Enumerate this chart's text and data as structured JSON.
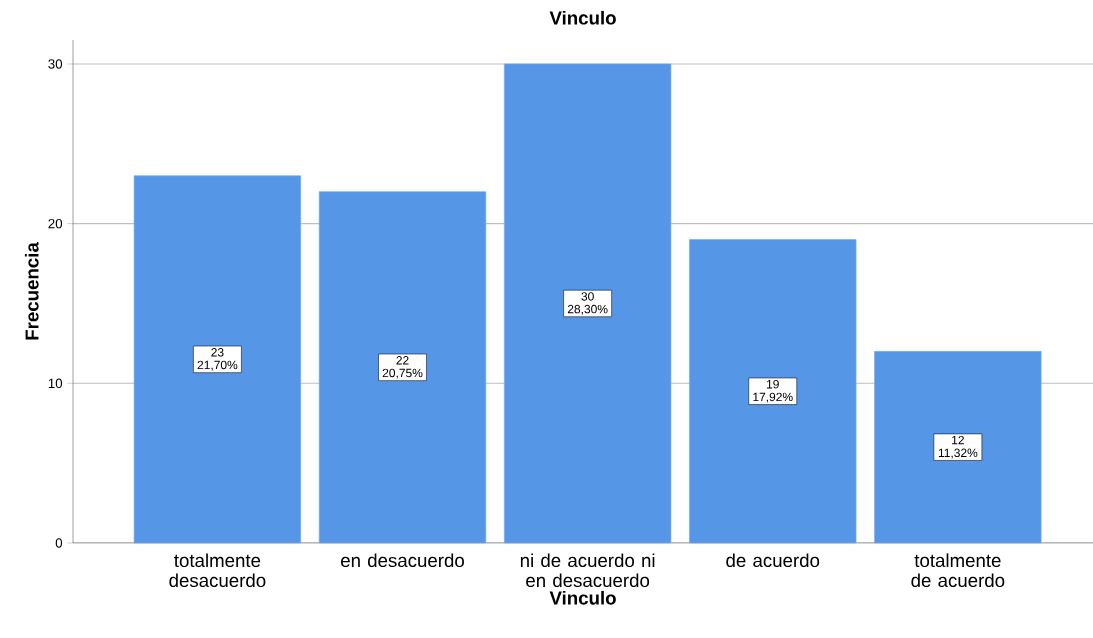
{
  "chart_data": {
    "type": "bar",
    "title": "Vinculo",
    "xlabel": "Vinculo",
    "ylabel": "Frecuencia",
    "categories": [
      "totalmente desacuerdo",
      "en desacuerdo",
      "ni de acuerdo ni en desacuerdo",
      "de acuerdo",
      "totalmente de acuerdo"
    ],
    "values": [
      23,
      22,
      30,
      19,
      12
    ],
    "value_labels": [
      "23 21,70%",
      "22 20,75%",
      "30 28,30%",
      "19 17,92%",
      "12 11,32%"
    ],
    "color": "#5596e6",
    "ylim": [
      0,
      31.5
    ],
    "yticks": [
      0,
      10,
      20,
      30
    ],
    "grid": "y"
  }
}
